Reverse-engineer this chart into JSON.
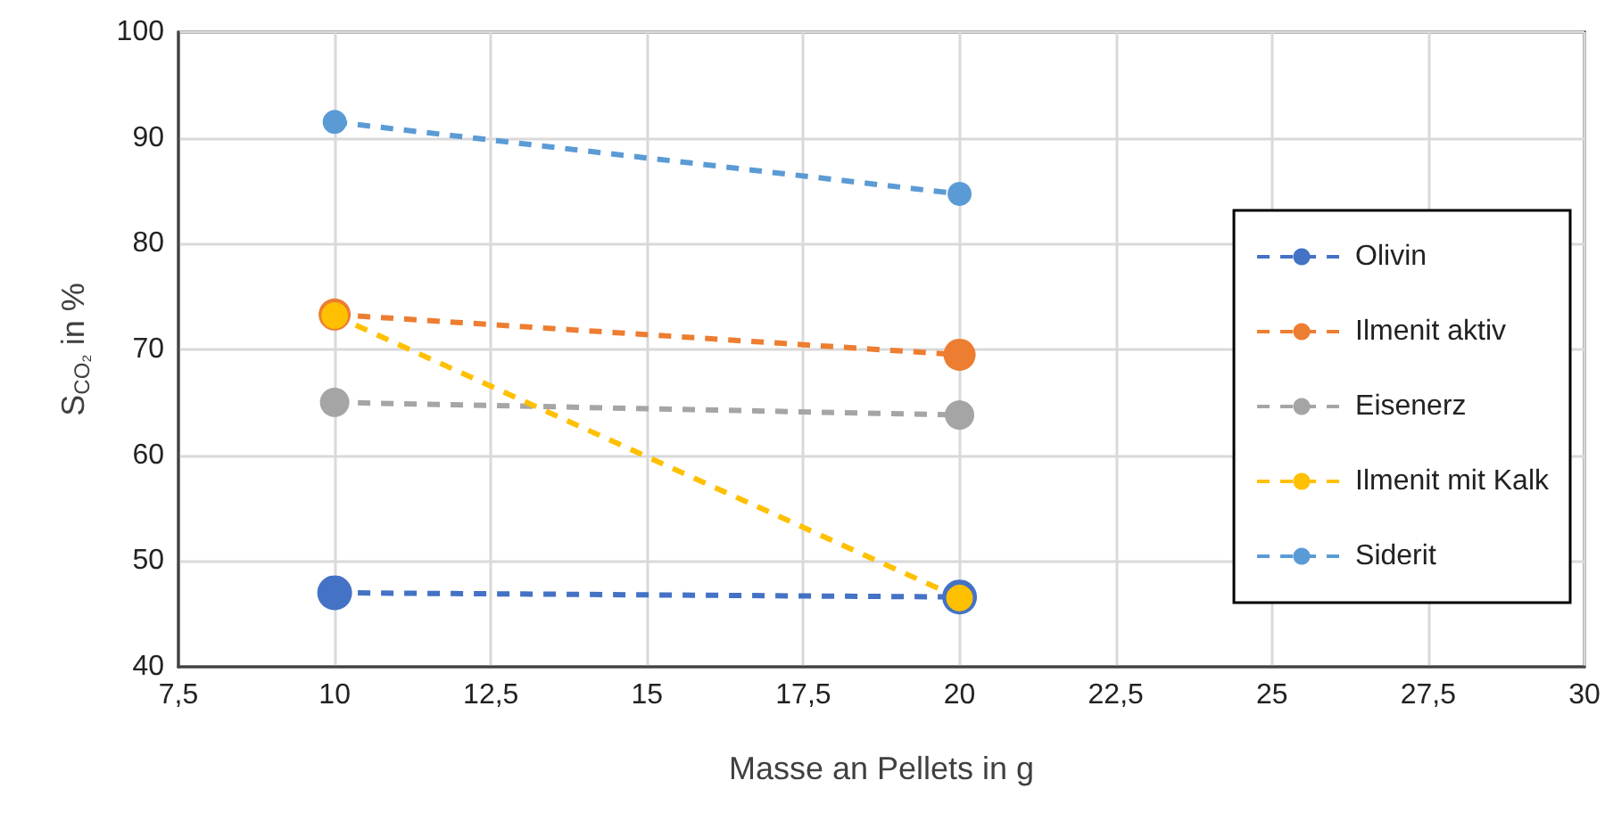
{
  "chart_data": {
    "type": "line",
    "xlabel": "Masse an Pellets in g",
    "ylabel": "S$_{CO₂}$ in %",
    "x": [
      10,
      20
    ],
    "series": [
      {
        "name": "Olivin",
        "color": "#4472c4",
        "values": [
          47.0,
          46.6
        ]
      },
      {
        "name": "Ilmenit aktiv",
        "color": "#ed7d31",
        "values": [
          73.3,
          69.5
        ]
      },
      {
        "name": "Eisenerz",
        "color": "#a5a5a5",
        "values": [
          65.0,
          63.8
        ]
      },
      {
        "name": "Ilmenit mit Kalk",
        "color": "#ffc000",
        "values": [
          73.2,
          46.5
        ]
      },
      {
        "name": "Siderit",
        "color": "#5b9bd5",
        "values": [
          91.5,
          84.7
        ]
      }
    ],
    "xlim": [
      7.5,
      30
    ],
    "xticks": [
      {
        "value": 7.5,
        "label": "7,5"
      },
      10,
      {
        "value": 12.5,
        "label": "12,5"
      },
      15,
      {
        "value": 17.5,
        "label": "17,5"
      },
      20,
      {
        "value": 22.5,
        "label": "22,5"
      },
      25,
      {
        "value": 27.5,
        "label": "27,5"
      },
      30
    ],
    "ylim": [
      40,
      100
    ],
    "yticks": [
      40,
      50,
      60,
      70,
      80,
      90,
      100
    ],
    "grid": true,
    "legend": "right",
    "marker": "circle",
    "line_style": "dashed"
  }
}
